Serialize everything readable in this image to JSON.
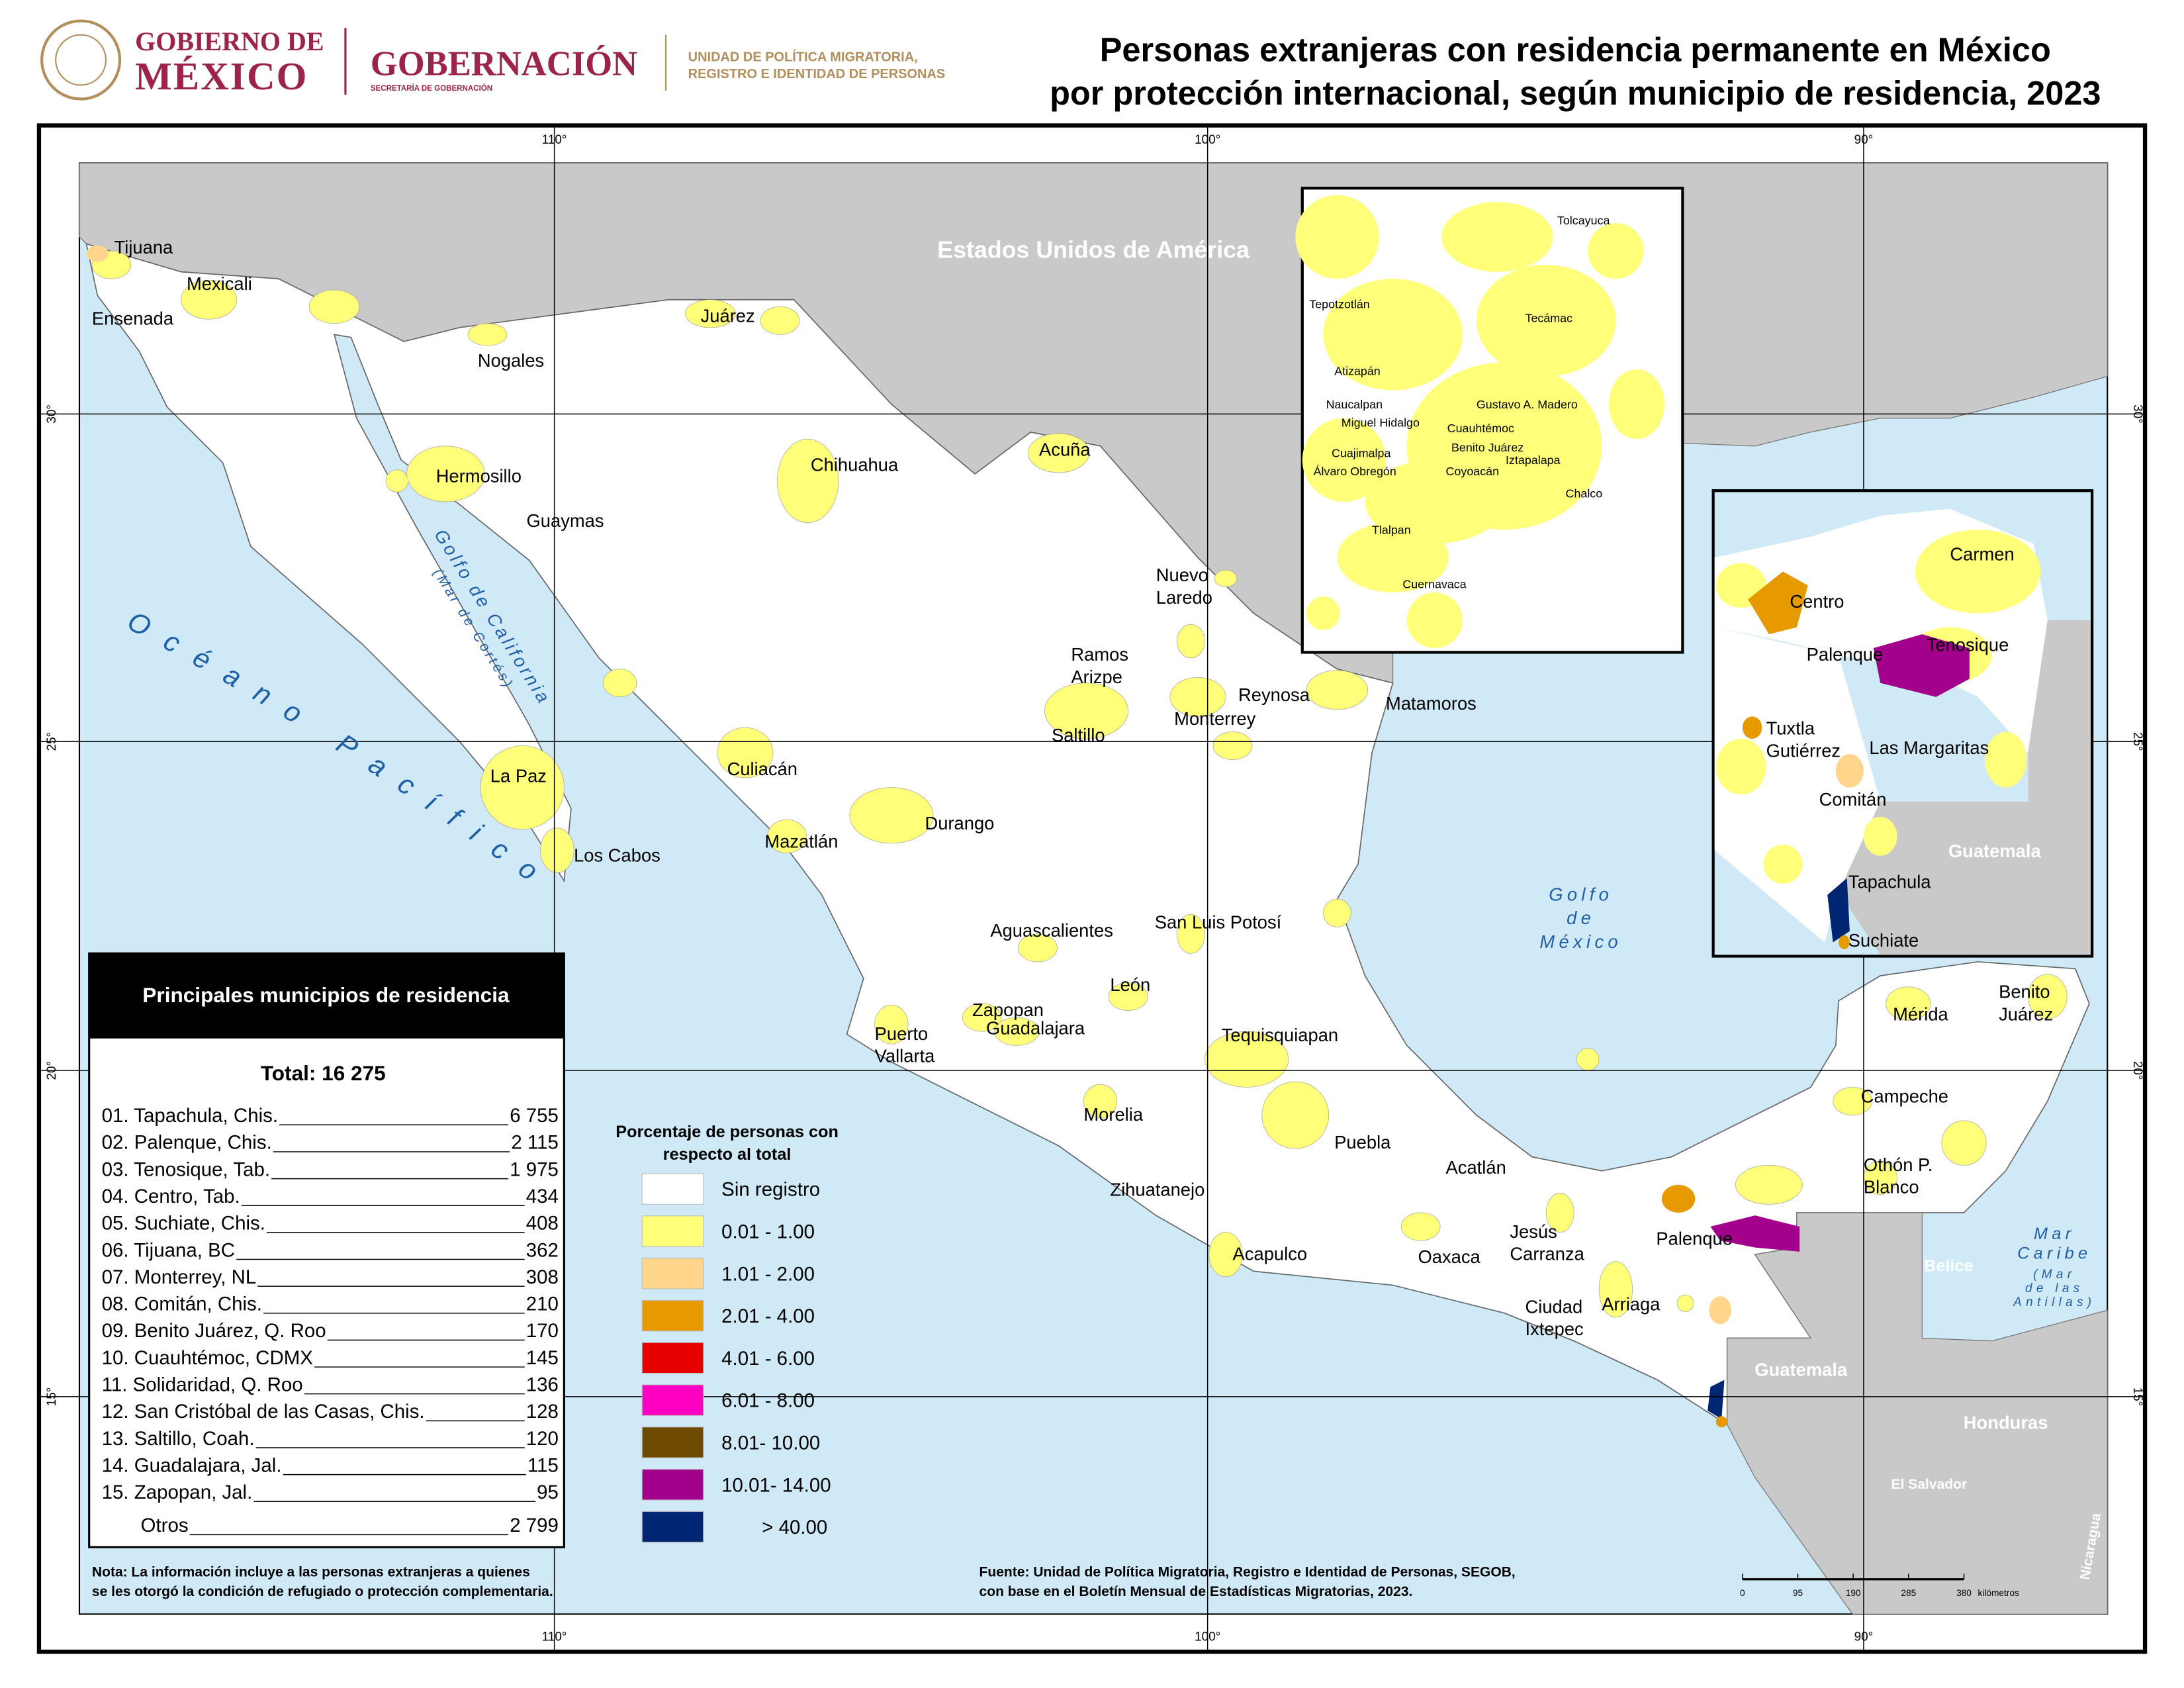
{
  "header": {
    "gob": [
      "GOBIERNO DE",
      "MÉXICO"
    ],
    "gobernacion": "GOBERNACIÓN",
    "gobernacion_sub": "SECRETARÍA DE GOBERNACIÓN",
    "unidad": [
      "UNIDAD DE POLÍTICA MIGRATORIA,",
      "REGISTRO E IDENTIDAD DE PERSONAS"
    ],
    "title": [
      "Personas extranjeras con residencia permanente en México",
      "por protección internacional, según municipio de residencia, 2023"
    ]
  },
  "graticule": {
    "lon": [
      "110°",
      "100°",
      "90°"
    ],
    "lat": [
      "30°",
      "25°",
      "20°",
      "15°"
    ]
  },
  "map": {
    "countries": [
      "Estados Unidos de América",
      "Guatemala",
      "Belice",
      "Honduras",
      "El Salvador",
      "Nicaragua"
    ],
    "seas": {
      "pacifico": "Océano Pacífico",
      "california": [
        "Golfo de California",
        "(Mar de Cortés)"
      ],
      "golfo": [
        "Golfo",
        "de",
        "México"
      ],
      "caribe": [
        "Mar",
        "Caribe",
        "(Mar",
        "de las",
        "Antillas)"
      ]
    },
    "cities": [
      "Tijuana",
      "Mexicali",
      "Ensenada",
      "Juárez",
      "Nogales",
      "Hermosillo",
      "Chihuahua",
      "Acuña",
      "Guaymas",
      [
        "Nuevo",
        "Laredo"
      ],
      [
        "Ramos",
        "Arizpe"
      ],
      "Reynosa",
      "Matamoros",
      "Monterrey",
      "Saltillo",
      "Culiacán",
      "La Paz",
      "Durango",
      "Mazatlán",
      "Los Cabos",
      "Aguascalientes",
      "San Luis Potosí",
      "León",
      "Zapopan",
      "Guadalajara",
      [
        "Puerto",
        "Vallarta"
      ],
      "Tequisquiapan",
      "Morelia",
      "Puebla",
      "Acatlán",
      "Zihuatanejo",
      "Acapulco",
      "Oaxaca",
      [
        "Jesús",
        "Carranza"
      ],
      [
        "Ciudad",
        "Ixtepec"
      ],
      "Arriaga",
      "Palenque",
      "Mérida",
      [
        "Benito",
        "Juárez"
      ],
      "Campeche",
      [
        "Othón P.",
        "Blanco"
      ]
    ]
  },
  "inset_cdmx": [
    "Tolcayuca",
    "Tepotzotlán",
    "Tecámac",
    "Atizapán",
    "Naucalpan",
    "Gustavo A. Madero",
    "Miguel Hidalgo",
    "Cuauhtémoc",
    "Benito Juárez",
    "Cuajimalpa",
    "Iztapalapa",
    "Álvaro Obregón",
    "Coyoacán",
    "Chalco",
    "Tlalpan",
    "Cuernavaca"
  ],
  "inset_south": {
    "country": "Guatemala",
    "cities": [
      "Carmen",
      "Centro",
      "Palenque",
      "Tenosique",
      [
        "Tuxtla",
        "Gutiérrez"
      ],
      "Las Margaritas",
      "Comitán",
      "Tapachula",
      "Suchiate"
    ]
  },
  "table": {
    "title": "Principales municipios de residencia",
    "total": "Total: 16 275",
    "rows": [
      [
        "01. Tapachula, Chis.",
        "6 755"
      ],
      [
        "02. Palenque, Chis.",
        "2 115"
      ],
      [
        "03. Tenosique, Tab.",
        "1 975"
      ],
      [
        "04. Centro, Tab.",
        "434"
      ],
      [
        "05. Suchiate, Chis.",
        "408"
      ],
      [
        "06. Tijuana, BC",
        "362"
      ],
      [
        "07. Monterrey, NL",
        "308"
      ],
      [
        "08. Comitán, Chis.",
        "210"
      ],
      [
        "09. Benito Juárez, Q. Roo",
        "170"
      ],
      [
        "10. Cuauhtémoc, CDMX",
        "145"
      ],
      [
        "11. Solidaridad, Q. Roo",
        "136"
      ],
      [
        "12. San Cristóbal de las Casas, Chis.",
        "128"
      ],
      [
        "13. Saltillo, Coah.",
        "120"
      ],
      [
        "14. Guadalajara, Jal.",
        "115"
      ],
      [
        "15. Zapopan, Jal.",
        "95"
      ]
    ],
    "others": [
      "Otros",
      "2 799"
    ]
  },
  "legend": {
    "title": [
      "Porcentaje de personas con",
      "respecto al total"
    ],
    "classes": [
      {
        "label": "Sin registro",
        "color": "#ffffff"
      },
      {
        "label": "0.01 - 1.00",
        "color": "#ffff7a"
      },
      {
        "label": "1.01 - 2.00",
        "color": "#ffd68c"
      },
      {
        "label": "2.01 - 4.00",
        "color": "#e69a00"
      },
      {
        "label": "4.01 - 6.00",
        "color": "#e60000"
      },
      {
        "label": "6.01 - 8.00",
        "color": "#ff00c3"
      },
      {
        "label": "8.01- 10.00",
        "color": "#6e4b00"
      },
      {
        "label": "10.01- 14.00",
        "color": "#a3008c"
      },
      {
        "label": "> 40.00",
        "color": "#002673"
      }
    ]
  },
  "note": [
    "Nota: La información incluye a las personas extranjeras a quienes",
    "se les otorgó la condición de refugiado o protección complementaria."
  ],
  "source": [
    "Fuente: Unidad de Política Migratoria, Registro e Identidad de Personas, SEGOB,",
    "con base en el Boletín Mensual de Estadísticas Migratorias, 2023."
  ],
  "scale": {
    "ticks": [
      "0",
      "95",
      "190",
      "285",
      "380"
    ],
    "unit": "kilómetros"
  }
}
